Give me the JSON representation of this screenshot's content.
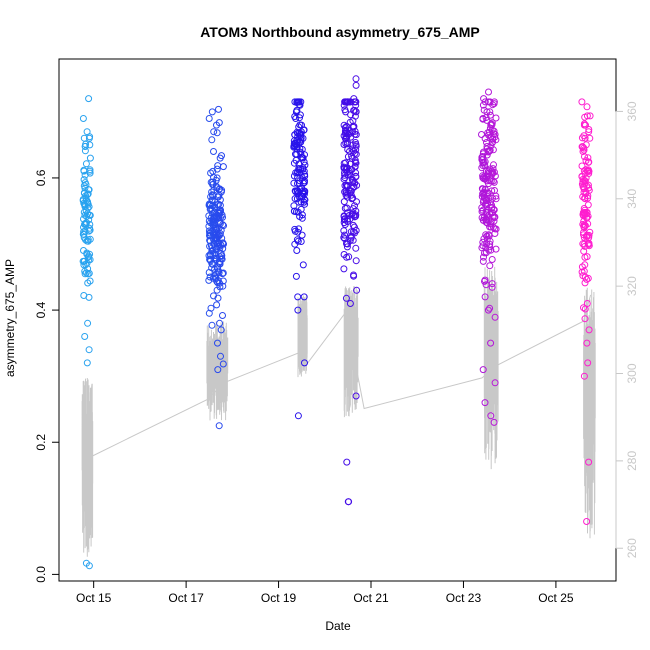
{
  "chart_data": {
    "type": "scatter",
    "title": "ATOM3 Northbound asymmetry_675_AMP",
    "xlabel": "Date",
    "ylabel": "asymmetry_675_AMP",
    "x_tick_labels": [
      "Oct 15",
      "Oct 17",
      "Oct 19",
      "Oct 21",
      "Oct 23",
      "Oct 25"
    ],
    "x_tick_values": [
      15,
      17,
      19,
      21,
      23,
      25
    ],
    "xlim": [
      14.25,
      26.3
    ],
    "ylim": [
      -0.01,
      0.78
    ],
    "y_ticks": [
      0.0,
      0.2,
      0.4,
      0.6
    ],
    "y_tick_labels": [
      "0.0",
      "0.2",
      "0.4",
      "0.6"
    ],
    "y2_ticks": [
      260,
      280,
      300,
      320,
      340,
      360
    ],
    "y2_tick_labels": [
      "260",
      "280",
      "300",
      "320",
      "340",
      "360"
    ],
    "y2lim": [
      252.5,
      372
    ],
    "point_color_start": "#29a3ef",
    "point_color_end": "#ff1ecf",
    "secondary_line_color": "#c8c8c8",
    "point_series": [
      {
        "center": 14.85,
        "spread": 0.08,
        "count": 90,
        "mean": 0.54,
        "sd": 0.06,
        "extras": [
          0.72,
          0.69,
          0.67,
          0.66,
          0.65,
          0.63,
          0.61,
          0.38,
          0.36,
          0.34,
          0.32,
          0.017,
          0.013
        ]
      },
      {
        "center": 17.65,
        "spread": 0.16,
        "count": 190,
        "mean": 0.52,
        "sd": 0.055,
        "extras": [
          0.7,
          0.69,
          0.68,
          0.67,
          0.64,
          0.63,
          0.6,
          0.38,
          0.37,
          0.35,
          0.33,
          0.31,
          0.225
        ]
      },
      {
        "center": 19.45,
        "spread": 0.12,
        "count": 130,
        "mean": 0.6,
        "sd": 0.07,
        "extras": [
          0.71,
          0.7,
          0.7,
          0.69,
          0.68,
          0.42,
          0.4,
          0.32,
          0.24
        ]
      },
      {
        "center": 20.55,
        "spread": 0.14,
        "count": 170,
        "mean": 0.6,
        "sd": 0.08,
        "extras": [
          0.75,
          0.74,
          0.72,
          0.71,
          0.71,
          0.7,
          0.7,
          0.43,
          0.41,
          0.27,
          0.17,
          0.11,
          0.11
        ]
      },
      {
        "center": 23.55,
        "spread": 0.16,
        "count": 180,
        "mean": 0.57,
        "sd": 0.07,
        "extras": [
          0.73,
          0.72,
          0.7,
          0.69,
          0.68,
          0.66,
          0.42,
          0.4,
          0.35,
          0.31,
          0.29,
          0.26,
          0.24,
          0.23
        ]
      },
      {
        "center": 25.65,
        "spread": 0.09,
        "count": 110,
        "mean": 0.57,
        "sd": 0.07,
        "extras": [
          0.68,
          0.68,
          0.67,
          0.66,
          0.45,
          0.41,
          0.37,
          0.35,
          0.32,
          0.3,
          0.17,
          0.08
        ]
      }
    ],
    "secondary_baseline": [
      {
        "x": 14.95,
        "y": 281
      },
      {
        "x": 17.45,
        "y": 294
      },
      {
        "x": 17.85,
        "y": 298
      },
      {
        "x": 19.5,
        "y": 305
      },
      {
        "x": 19.6,
        "y": 302
      },
      {
        "x": 20.45,
        "y": 314
      },
      {
        "x": 20.85,
        "y": 292
      },
      {
        "x": 23.4,
        "y": 299
      },
      {
        "x": 23.75,
        "y": 302
      },
      {
        "x": 25.6,
        "y": 312
      },
      {
        "x": 25.75,
        "y": 318
      }
    ],
    "secondary_bursts": [
      {
        "x0": 14.75,
        "x1": 14.98,
        "low": 258,
        "high": 300
      },
      {
        "x0": 17.45,
        "x1": 17.9,
        "low": 289,
        "high": 312
      },
      {
        "x0": 19.42,
        "x1": 19.62,
        "low": 299,
        "high": 318
      },
      {
        "x0": 20.42,
        "x1": 20.72,
        "low": 290,
        "high": 320
      },
      {
        "x0": 23.45,
        "x1": 23.75,
        "low": 278,
        "high": 325
      },
      {
        "x0": 25.6,
        "x1": 25.85,
        "low": 262,
        "high": 320
      }
    ]
  }
}
